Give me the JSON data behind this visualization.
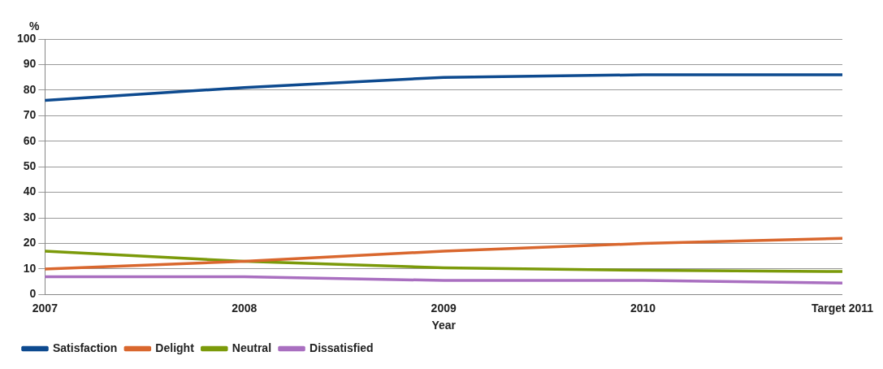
{
  "chart_data": {
    "type": "line",
    "ylabel": "%",
    "xlabel": "Year",
    "categories": [
      "2007",
      "2008",
      "2009",
      "2010",
      "Target 2011"
    ],
    "series": [
      {
        "name": "Satisfaction",
        "color": "#0d4a8f",
        "values": [
          76,
          81,
          85,
          86,
          86
        ]
      },
      {
        "name": "Delight",
        "color": "#d9672e",
        "values": [
          10,
          13,
          17,
          20,
          22
        ]
      },
      {
        "name": "Neutral",
        "color": "#7b9a0a",
        "values": [
          17,
          13,
          10.5,
          9.5,
          9
        ]
      },
      {
        "name": "Dissatisfied",
        "color": "#a96fc0",
        "values": [
          7,
          7,
          5.5,
          5.5,
          4.5
        ]
      }
    ],
    "ylim": [
      0,
      100
    ],
    "yticks": [
      0,
      10,
      20,
      30,
      40,
      50,
      60,
      70,
      80,
      90,
      100
    ],
    "grid": "y",
    "legend": "bottom left",
    "marker": "none"
  }
}
